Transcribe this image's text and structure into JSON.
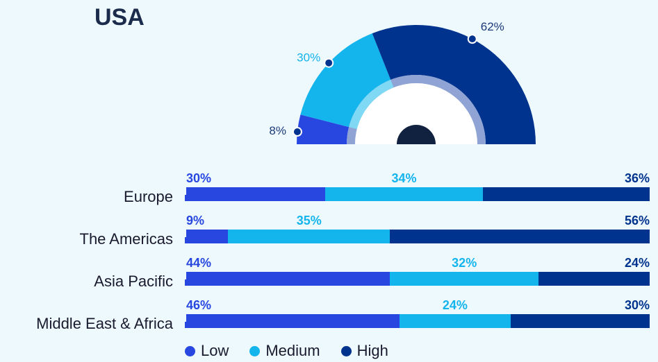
{
  "title": "USA",
  "colors": {
    "low": "#2747e0",
    "medium": "#14b4ec",
    "high": "#00338d"
  },
  "chart_data": [
    {
      "type": "pie",
      "subtype": "half-donut",
      "title": "USA",
      "slices": [
        {
          "name": "Low",
          "value": 8,
          "label": "8%"
        },
        {
          "name": "Medium",
          "value": 30,
          "label": "30%"
        },
        {
          "name": "High",
          "value": 62,
          "label": "62%"
        }
      ]
    },
    {
      "type": "bar",
      "orientation": "horizontal",
      "stacked": true,
      "normalized": true,
      "categories": [
        "Europe",
        "The Americas",
        "Asia Pacific",
        "Middle East & Africa"
      ],
      "series": [
        {
          "name": "Low",
          "values": [
            30,
            9,
            44,
            46
          ],
          "labels": [
            "30%",
            "9%",
            "44%",
            "46%"
          ]
        },
        {
          "name": "Medium",
          "values": [
            34,
            35,
            32,
            24
          ],
          "labels": [
            "34%",
            "35%",
            "32%",
            "24%"
          ]
        },
        {
          "name": "High",
          "values": [
            36,
            56,
            24,
            30
          ],
          "labels": [
            "36%",
            "56%",
            "24%",
            "30%"
          ]
        }
      ],
      "legend": {
        "position": "bottom",
        "items": [
          "Low",
          "Medium",
          "High"
        ]
      }
    }
  ]
}
